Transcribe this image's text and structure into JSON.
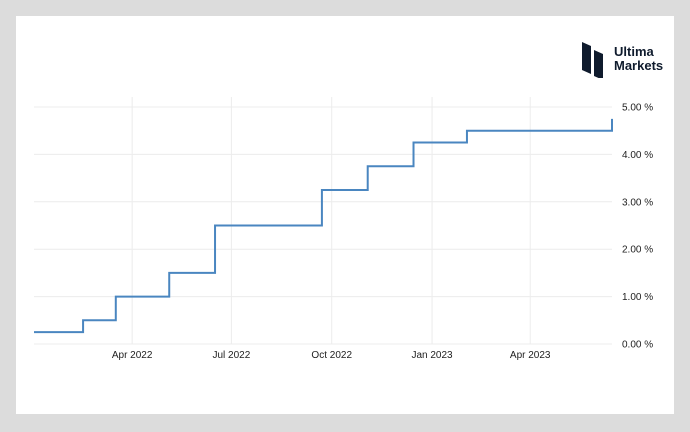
{
  "brand": {
    "name_line1": "Ultima",
    "name_line2": "Markets",
    "color": "#0f1b2d"
  },
  "chart_data": {
    "type": "line",
    "step": true,
    "title": "",
    "xlabel": "",
    "ylabel": "",
    "x_tick_labels": [
      "Apr 2022",
      "Jul 2022",
      "Oct 2022",
      "Jan 2023",
      "Apr 2023"
    ],
    "y_tick_labels": [
      "5.00 %",
      "4.00 %",
      "3.00 %",
      "2.00 %",
      "1.00 %",
      "0.00 %"
    ],
    "ylim": [
      0,
      5
    ],
    "xlim": [
      "2022-01-01",
      "2023-06-15"
    ],
    "grid": true,
    "y_axis_side": "right",
    "line_color": "#4a86c0",
    "series": [
      {
        "x": [
          "2022-01-01",
          "2022-02-15",
          "2022-03-17",
          "2022-05-05",
          "2022-06-16",
          "2022-07-28",
          "2022-09-22",
          "2022-11-03",
          "2022-12-15",
          "2023-02-02",
          "2023-05-11",
          "2023-06-15"
        ],
        "values": [
          0.25,
          0.5,
          1.0,
          1.5,
          2.5,
          2.5,
          3.25,
          3.75,
          4.25,
          4.5,
          4.5,
          4.75
        ]
      }
    ]
  }
}
